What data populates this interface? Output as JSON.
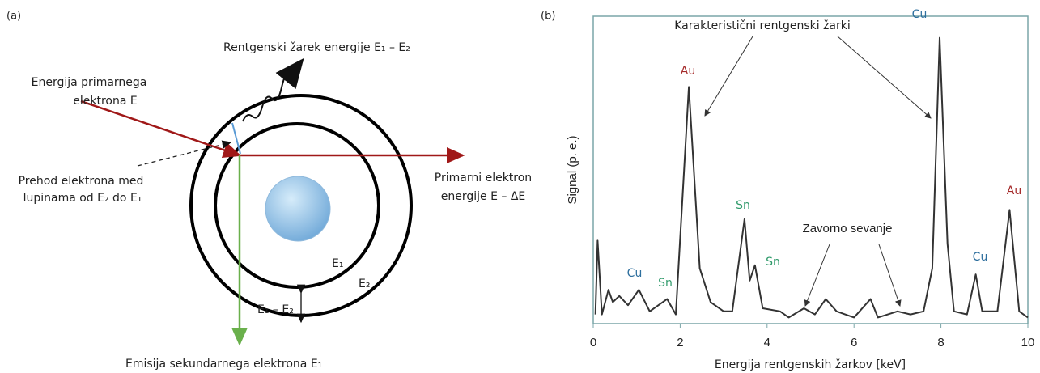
{
  "diagram": {
    "panel_label": "(a)",
    "xray": "Rentgenski žarek energije E₁ – E₂",
    "primary": [
      "Energija primarnega",
      "elektrona E"
    ],
    "transition": [
      "Prehod elektrona med",
      "lupinama od E₂ do E₁"
    ],
    "scattered": [
      "Primarni elektron",
      "energije E – ΔE"
    ],
    "shell1": "E₁",
    "shell2": "E₂",
    "gap": "E₁ – E₂",
    "secondary": "Emisija sekundarnega elektrona E₁"
  },
  "chart_data": {
    "type": "line",
    "panel_label": "(b)",
    "xlabel": "Energija rentgenskih žarkov [keV]",
    "ylabel": "Signal (p. e.)",
    "xlim": [
      0,
      10
    ],
    "xticks": [
      0,
      2,
      4,
      6,
      8,
      10
    ],
    "ylim": [
      0,
      1
    ],
    "series": [
      {
        "color": "#333333",
        "x": [
          0.05,
          0.1,
          0.2,
          0.35,
          0.45,
          0.6,
          0.8,
          1.05,
          1.3,
          1.7,
          1.9,
          2.2,
          2.45,
          2.7,
          3.0,
          3.2,
          3.48,
          3.6,
          3.72,
          3.9,
          4.3,
          4.5,
          4.85,
          5.1,
          5.35,
          5.6,
          6.0,
          6.38,
          6.55,
          7.0,
          7.3,
          7.6,
          7.8,
          7.97,
          8.15,
          8.3,
          8.6,
          8.8,
          8.95,
          9.3,
          9.58,
          9.8,
          10
        ],
        "values": [
          0.03,
          0.27,
          0.03,
          0.11,
          0.07,
          0.09,
          0.06,
          0.11,
          0.04,
          0.08,
          0.03,
          0.77,
          0.18,
          0.07,
          0.04,
          0.04,
          0.34,
          0.14,
          0.19,
          0.05,
          0.04,
          0.02,
          0.05,
          0.03,
          0.08,
          0.04,
          0.02,
          0.08,
          0.02,
          0.04,
          0.03,
          0.04,
          0.18,
          0.93,
          0.26,
          0.04,
          0.03,
          0.16,
          0.04,
          0.04,
          0.37,
          0.04,
          0.02
        ]
      }
    ],
    "annotations": [
      {
        "text": "Cu",
        "color": "#2e6f9e"
      },
      {
        "text": "Sn",
        "color": "#2f9a6a"
      },
      {
        "text": "Au",
        "color": "#a52a2a"
      },
      {
        "text": "Sn",
        "color": "#2f9a6a"
      },
      {
        "text": "Sn",
        "color": "#2f9a6a"
      },
      {
        "text": "Cu",
        "color": "#2e6f9e"
      },
      {
        "text": "Cu",
        "color": "#2e6f9e"
      },
      {
        "text": "Au",
        "color": "#a52a2a"
      }
    ],
    "characteristic": "Karakteristični rentgenski žarki",
    "bremsstrahlung": "Zavorno sevanje"
  }
}
